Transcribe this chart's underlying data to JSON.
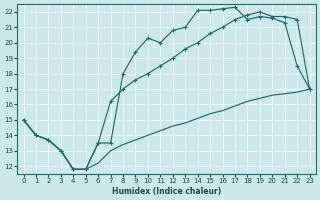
{
  "xlabel": "Humidex (Indice chaleur)",
  "bg_color": "#cce8e8",
  "line_color": "#1a6b6b",
  "xlim": [
    -0.5,
    23.5
  ],
  "ylim": [
    11.5,
    22.5
  ],
  "xticks": [
    0,
    1,
    2,
    3,
    4,
    5,
    6,
    7,
    8,
    9,
    10,
    11,
    12,
    13,
    14,
    15,
    16,
    17,
    18,
    19,
    20,
    21,
    22,
    23
  ],
  "yticks": [
    12,
    13,
    14,
    15,
    16,
    17,
    18,
    19,
    20,
    21,
    22
  ],
  "line1_x": [
    0,
    1,
    2,
    3,
    4,
    5,
    6,
    7,
    8,
    9,
    10,
    11,
    12,
    13,
    14,
    15,
    16,
    17,
    18,
    19,
    20,
    21,
    22,
    23
  ],
  "line1_y": [
    15,
    14,
    13.7,
    13,
    11.8,
    11.8,
    13.5,
    13.5,
    18,
    19.4,
    20.3,
    20.0,
    20.8,
    21.0,
    22.1,
    22.1,
    22.2,
    22.3,
    21.5,
    21.7,
    21.6,
    21.3,
    18.5,
    17.0
  ],
  "line2_x": [
    0,
    1,
    2,
    3,
    4,
    5,
    6,
    7,
    8,
    9,
    10,
    11,
    12,
    13,
    14,
    15,
    16,
    17,
    18,
    19,
    20,
    21,
    22,
    23
  ],
  "line2_y": [
    15,
    14,
    13.7,
    13,
    11.8,
    11.8,
    13.5,
    16.2,
    17.0,
    17.6,
    18.0,
    18.5,
    19.0,
    19.6,
    20.0,
    20.6,
    21.0,
    21.5,
    21.8,
    22.0,
    21.7,
    21.7,
    21.5,
    17.0
  ],
  "line3_x": [
    0,
    1,
    2,
    3,
    4,
    5,
    6,
    7,
    8,
    9,
    10,
    11,
    12,
    13,
    14,
    15,
    16,
    17,
    18,
    19,
    20,
    21,
    22,
    23
  ],
  "line3_y": [
    15,
    14,
    13.7,
    13,
    11.8,
    11.8,
    12.2,
    13.0,
    13.4,
    13.7,
    14.0,
    14.3,
    14.6,
    14.8,
    15.1,
    15.4,
    15.6,
    15.9,
    16.2,
    16.4,
    16.6,
    16.7,
    16.8,
    17.0
  ]
}
